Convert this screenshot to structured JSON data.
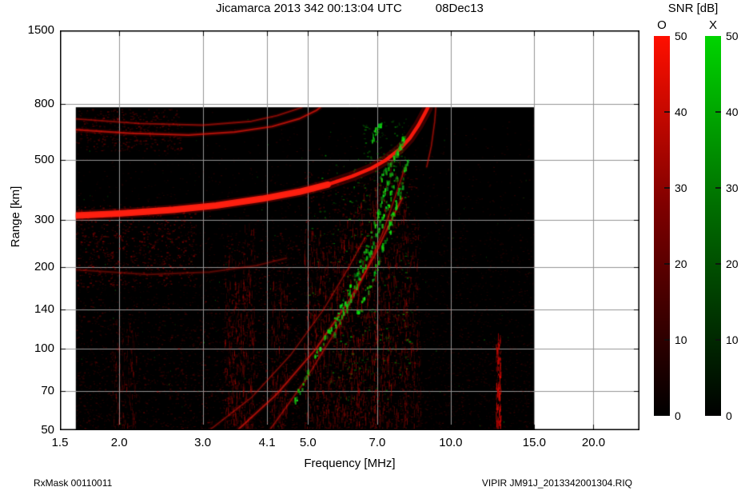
{
  "header": {
    "title": "Jicamarca 2013 342 00:13:04 UTC",
    "date": "08Dec13"
  },
  "footer": {
    "left": "RxMask 00110011",
    "right": "VIPIR  JM91J_2013342001304.RIQ"
  },
  "chart_data": {
    "type": "heatmap",
    "subtype": "ionogram",
    "title": "Jicamarca 2013 342 00:13:04 UTC",
    "date_label": "08Dec13",
    "xlabel": "Frequency [MHz]",
    "ylabel": "Range [km]",
    "legend_title": "SNR [dB]",
    "x_scale": "log",
    "y_scale": "log",
    "xlim": [
      1.5,
      25
    ],
    "ylim": [
      50,
      1500
    ],
    "grid": true,
    "x_ticks": [
      {
        "value": 1.5,
        "label": "1.5"
      },
      {
        "value": 2.0,
        "label": "2.0"
      },
      {
        "value": 3.0,
        "label": "3.0"
      },
      {
        "value": 4.1,
        "label": "4.1"
      },
      {
        "value": 5.0,
        "label": "5.0"
      },
      {
        "value": 7.0,
        "label": "7.0"
      },
      {
        "value": 10.0,
        "label": "10.0"
      },
      {
        "value": 15.0,
        "label": "15.0"
      },
      {
        "value": 20.0,
        "label": "20.0"
      }
    ],
    "y_ticks": [
      {
        "value": 1500,
        "label": "1500"
      },
      {
        "value": 800,
        "label": "800"
      },
      {
        "value": 500,
        "label": "500"
      },
      {
        "value": 300,
        "label": "300"
      },
      {
        "value": 200,
        "label": "200"
      },
      {
        "value": 140,
        "label": "140"
      },
      {
        "value": 100,
        "label": "100"
      },
      {
        "value": 70,
        "label": "70"
      },
      {
        "value": 50,
        "label": "50"
      }
    ],
    "data_region": {
      "f_min": 1.62,
      "f_max": 15.0,
      "r_min": 50,
      "r_max": 780
    },
    "colorbars": [
      {
        "label": "O",
        "min": 0,
        "max": 50,
        "ticks": [
          0,
          10,
          20,
          30,
          40,
          50
        ],
        "min_color": "#000000",
        "mid_color": "#7e0000",
        "max_color": "#ff0f00"
      },
      {
        "label": "X",
        "min": 0,
        "max": 50,
        "ticks": [
          0,
          10,
          20,
          30,
          40,
          50
        ],
        "min_color": "#000000",
        "mid_color": "#006e00",
        "max_color": "#00d400"
      }
    ],
    "o_mode_traces": [
      {
        "name": "f-region-echo",
        "boost_until_f": 5.5,
        "points": [
          [
            1.6,
            310
          ],
          [
            2.0,
            316
          ],
          [
            2.6,
            326
          ],
          [
            3.2,
            338
          ],
          [
            4.0,
            358
          ],
          [
            4.8,
            380
          ],
          [
            5.5,
            404
          ],
          [
            6.2,
            434
          ],
          [
            6.8,
            464
          ],
          [
            7.3,
            498
          ],
          [
            7.8,
            545
          ],
          [
            8.2,
            600
          ],
          [
            8.55,
            670
          ],
          [
            8.8,
            735
          ],
          [
            8.95,
            778
          ]
        ],
        "width": 4.5,
        "alpha": 0.95,
        "glow": 0.35
      },
      {
        "name": "cusp-outer-branch",
        "points": [
          [
            8.9,
            470
          ],
          [
            9.1,
            560
          ],
          [
            9.25,
            690
          ],
          [
            9.3,
            778
          ]
        ],
        "width": 1.5,
        "alpha": 0.5,
        "glow": 0.15
      },
      {
        "name": "second-hop-echo",
        "points": [
          [
            1.6,
            645
          ],
          [
            2.1,
            625
          ],
          [
            2.8,
            616
          ],
          [
            3.5,
            632
          ],
          [
            4.2,
            662
          ],
          [
            4.8,
            708
          ],
          [
            5.2,
            758
          ],
          [
            5.3,
            778
          ]
        ],
        "width": 2.2,
        "alpha": 0.6,
        "glow": 0.2
      },
      {
        "name": "third-hop-echo",
        "points": [
          [
            1.6,
            708
          ],
          [
            2.2,
            680
          ],
          [
            3.0,
            670
          ],
          [
            3.8,
            692
          ],
          [
            4.3,
            726
          ],
          [
            4.7,
            764
          ],
          [
            4.85,
            778
          ]
        ],
        "width": 1.8,
        "alpha": 0.45,
        "glow": 0.15
      },
      {
        "name": "low-band-echo",
        "points": [
          [
            1.6,
            196
          ],
          [
            2.3,
            188
          ],
          [
            3.1,
            192
          ],
          [
            3.9,
            203
          ],
          [
            4.5,
            216
          ]
        ],
        "width": 2.0,
        "alpha": 0.28,
        "glow": 0.1
      },
      {
        "name": "oblique-echo-1",
        "points": [
          [
            3.55,
            50
          ],
          [
            4.3,
            68
          ],
          [
            5.2,
            100
          ],
          [
            6.1,
            150
          ],
          [
            6.9,
            220
          ],
          [
            7.5,
            300
          ],
          [
            7.9,
            360
          ]
        ],
        "width": 2.2,
        "alpha": 0.55,
        "glow": 0.18
      },
      {
        "name": "oblique-echo-2",
        "points": [
          [
            3.1,
            50
          ],
          [
            3.8,
            66
          ],
          [
            4.6,
            95
          ],
          [
            5.4,
            140
          ],
          [
            6.1,
            200
          ],
          [
            6.6,
            258
          ]
        ],
        "width": 1.6,
        "alpha": 0.38,
        "glow": 0.12
      },
      {
        "name": "oblique-echo-3",
        "points": [
          [
            4.15,
            50
          ],
          [
            4.9,
            75
          ],
          [
            5.7,
            115
          ],
          [
            6.5,
            180
          ],
          [
            7.2,
            270
          ],
          [
            7.7,
            380
          ],
          [
            8.0,
            465
          ]
        ],
        "width": 1.8,
        "alpha": 0.42,
        "glow": 0.14
      }
    ],
    "x_mode_streaks": [
      {
        "name": "x-streak-1",
        "points": [
          [
            5.1,
            90
          ],
          [
            5.8,
            135
          ],
          [
            6.4,
            200
          ],
          [
            6.9,
            290
          ],
          [
            7.3,
            400
          ],
          [
            7.55,
            470
          ]
        ],
        "n": 85
      },
      {
        "name": "x-streak-2",
        "points": [
          [
            5.6,
            110
          ],
          [
            6.2,
            160
          ],
          [
            6.8,
            235
          ],
          [
            7.3,
            330
          ],
          [
            7.7,
            440
          ]
        ],
        "n": 75
      },
      {
        "name": "x-streak-3",
        "points": [
          [
            6.3,
            130
          ],
          [
            6.9,
            190
          ],
          [
            7.4,
            280
          ],
          [
            7.85,
            400
          ],
          [
            8.1,
            500
          ]
        ],
        "n": 75
      },
      {
        "name": "x-streak-cusp",
        "points": [
          [
            7.1,
            430
          ],
          [
            7.5,
            500
          ],
          [
            7.8,
            560
          ],
          [
            7.95,
            615
          ]
        ],
        "n": 50
      },
      {
        "name": "x-streak-high",
        "points": [
          [
            6.8,
            600
          ],
          [
            7.1,
            690
          ]
        ],
        "n": 20
      },
      {
        "name": "x-streak-low",
        "points": [
          [
            4.6,
            60
          ],
          [
            5.05,
            85
          ]
        ],
        "n": 16
      }
    ],
    "rfi_stripes": [
      {
        "f": 2.05,
        "w": 0.06,
        "r_top": 130,
        "a": 0.3,
        "n": 150
      },
      {
        "f": 3.5,
        "w": 0.05,
        "r_top": 230,
        "a": 0.45,
        "n": 220
      },
      {
        "f": 3.75,
        "w": 0.03,
        "r_top": 300,
        "a": 0.4,
        "n": 150
      },
      {
        "f": 4.35,
        "w": 0.04,
        "r_top": 190,
        "a": 0.4,
        "n": 160
      },
      {
        "f": 5.15,
        "w": 0.05,
        "r_top": 280,
        "a": 0.5,
        "n": 220
      },
      {
        "f": 5.6,
        "w": 0.04,
        "r_top": 240,
        "a": 0.45,
        "n": 170
      },
      {
        "f": 6.1,
        "w": 0.05,
        "r_top": 330,
        "a": 0.5,
        "n": 220
      },
      {
        "f": 6.65,
        "w": 0.05,
        "r_top": 380,
        "a": 0.5,
        "n": 220
      },
      {
        "f": 7.15,
        "w": 0.04,
        "r_top": 430,
        "a": 0.45,
        "n": 190
      },
      {
        "f": 7.7,
        "w": 0.05,
        "r_top": 520,
        "a": 0.45,
        "n": 200
      },
      {
        "f": 8.3,
        "w": 0.04,
        "r_top": 300,
        "a": 0.35,
        "n": 140
      },
      {
        "f": 12.6,
        "w": 0.012,
        "r_top": 115,
        "a": 0.9,
        "n": 130
      }
    ],
    "diffuse_patches": [
      {
        "color": "red",
        "f": [
          1.62,
          2.9
        ],
        "r": [
          170,
          340
        ],
        "n": 650,
        "a": 0.45
      },
      {
        "color": "red",
        "f": [
          1.62,
          2.7
        ],
        "r": [
          540,
          770
        ],
        "n": 420,
        "a": 0.35
      },
      {
        "color": "red",
        "f": [
          1.62,
          3.4
        ],
        "r": [
          50,
          160
        ],
        "n": 520,
        "a": 0.3
      },
      {
        "color": "red",
        "f": [
          3.3,
          4.8
        ],
        "r": [
          50,
          270
        ],
        "n": 620,
        "a": 0.33
      },
      {
        "color": "red",
        "f": [
          4.9,
          8.6
        ],
        "r": [
          50,
          450
        ],
        "n": 1300,
        "a": 0.34
      },
      {
        "color": "red",
        "f": [
          8.7,
          14.9
        ],
        "r": [
          50,
          260
        ],
        "n": 300,
        "a": 0.15
      },
      {
        "color": "green",
        "f": [
          5.0,
          8.3
        ],
        "r": [
          80,
          520
        ],
        "n": 210,
        "a": 0.55
      },
      {
        "color": "green",
        "f": [
          6.5,
          8.0
        ],
        "r": [
          450,
          700
        ],
        "n": 90,
        "a": 0.5
      },
      {
        "color": "green",
        "f": [
          5.5,
          7.5
        ],
        "r": [
          60,
          120
        ],
        "n": 60,
        "a": 0.45
      }
    ],
    "noise": {
      "red_dots": 6000,
      "green_dots": 120
    }
  }
}
